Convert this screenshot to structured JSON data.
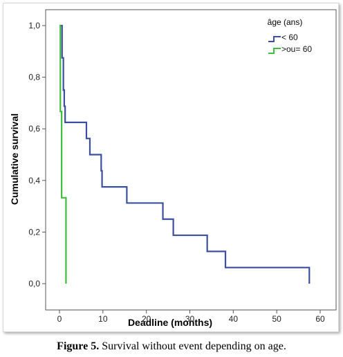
{
  "figure": {
    "label": "Figure 5.",
    "caption": "Survival without event depending on age."
  },
  "chart_data": {
    "type": "line",
    "step": true,
    "xlabel": "Deadline (months)",
    "ylabel": "Cumulative survival",
    "xlim": [
      0,
      60
    ],
    "ylim": [
      0,
      1.0
    ],
    "x_ticks": [
      0,
      10,
      20,
      30,
      40,
      50,
      60
    ],
    "x_tick_labels": [
      "0",
      "10",
      "20",
      "30",
      "40",
      "50",
      "60"
    ],
    "y_ticks": [
      0,
      0.2,
      0.4,
      0.6,
      0.8,
      1.0
    ],
    "y_tick_labels": [
      "0,0",
      "0,2",
      "0,4",
      "0,6",
      "0,8",
      "1,0"
    ],
    "grid": false,
    "legend": {
      "title": "âge (ans)",
      "position": "top-right"
    },
    "series": [
      {
        "name": "< 60",
        "color": "#3B4FA0",
        "points": [
          [
            0,
            1.0
          ],
          [
            0.6,
            0.875
          ],
          [
            0.9,
            0.75
          ],
          [
            1.1,
            0.6875
          ],
          [
            1.3,
            0.625
          ],
          [
            6.2,
            0.5625
          ],
          [
            7.0,
            0.5
          ],
          [
            9.6,
            0.4375
          ],
          [
            9.8,
            0.375
          ],
          [
            15.5,
            0.3125
          ],
          [
            23.8,
            0.25
          ],
          [
            26.2,
            0.1875
          ],
          [
            34.0,
            0.125
          ],
          [
            38.2,
            0.0625
          ],
          [
            57.5,
            0.0
          ]
        ]
      },
      {
        "name": ">ou= 60",
        "color": "#3DBE3D",
        "points": [
          [
            0,
            1.0
          ],
          [
            0.2,
            0.667
          ],
          [
            0.5,
            0.333
          ],
          [
            1.5,
            0.0
          ]
        ]
      }
    ]
  }
}
